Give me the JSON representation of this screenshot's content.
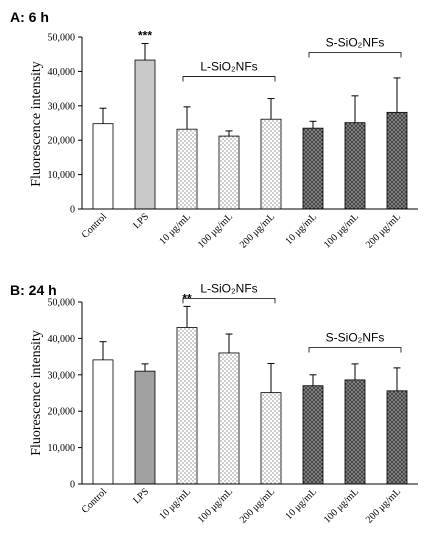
{
  "chart_data": [
    {
      "type": "bar",
      "panel_label": "A: 6 h",
      "ylabel": "Fluorescence intensity",
      "ylim": [
        0,
        50000
      ],
      "yticks": [
        "0",
        "10,000",
        "20,000",
        "30,000",
        "40,000",
        "50,000"
      ],
      "ytick_values": [
        0,
        10000,
        20000,
        30000,
        40000,
        50000
      ],
      "categories": [
        "Control",
        "LPS",
        "10 μg/mL",
        "100 μg/mL",
        "200 μg/mL",
        "10 μg/mL",
        "100 μg/mL",
        "200 μg/mL"
      ],
      "values": [
        24800,
        43300,
        23200,
        21200,
        26100,
        23500,
        25100,
        28100
      ],
      "errors": [
        4500,
        4800,
        6500,
        1500,
        6000,
        2000,
        7800,
        10000
      ],
      "fills": [
        "white",
        "light-gray",
        "dots-sparse",
        "dots-sparse",
        "dots-sparse",
        "crosshatch-dark",
        "crosshatch-dark",
        "crosshatch-dark"
      ],
      "significance": [
        {
          "index": 1,
          "label": "***"
        }
      ],
      "groups": [
        {
          "label": "L-SiO₂NFs",
          "from": 2,
          "to": 4,
          "y_level": 38500
        },
        {
          "label": "S-SiO₂NFs",
          "from": 5,
          "to": 7,
          "y_level": 45500
        }
      ]
    },
    {
      "type": "bar",
      "panel_label": "B: 24 h",
      "ylabel": "Fluorescence intensity",
      "ylim": [
        0,
        50000
      ],
      "yticks": [
        "0",
        "10,000",
        "20,000",
        "30,000",
        "40,000",
        "50,000"
      ],
      "ytick_values": [
        0,
        10000,
        20000,
        30000,
        40000,
        50000
      ],
      "categories": [
        "Control",
        "LPS",
        "10 μg/mL",
        "100 μg/mL",
        "200 μg/mL",
        "10 μg/mL",
        "100 μg/mL",
        "200 μg/mL"
      ],
      "values": [
        34100,
        31000,
        43000,
        36000,
        25100,
        27000,
        28600,
        25600
      ],
      "errors": [
        5000,
        2000,
        5800,
        5200,
        8000,
        3000,
        4400,
        6300
      ],
      "fills": [
        "white",
        "mid-gray",
        "dots-sparse",
        "dots-sparse",
        "dots-sparse",
        "crosshatch-dark",
        "crosshatch-dark",
        "crosshatch-dark"
      ],
      "significance": [
        {
          "index": 2,
          "label": "**"
        }
      ],
      "groups": [
        {
          "label": "L-SiO₂NFs",
          "from": 2,
          "to": 4,
          "y_level": 51000
        },
        {
          "label": "S-SiO₂NFs",
          "from": 5,
          "to": 7,
          "y_level": 37500
        }
      ]
    }
  ],
  "colors": {
    "axis": "#000000",
    "light-gray": "#c8c8c8",
    "mid-gray": "#a0a0a0",
    "white": "#ffffff"
  }
}
